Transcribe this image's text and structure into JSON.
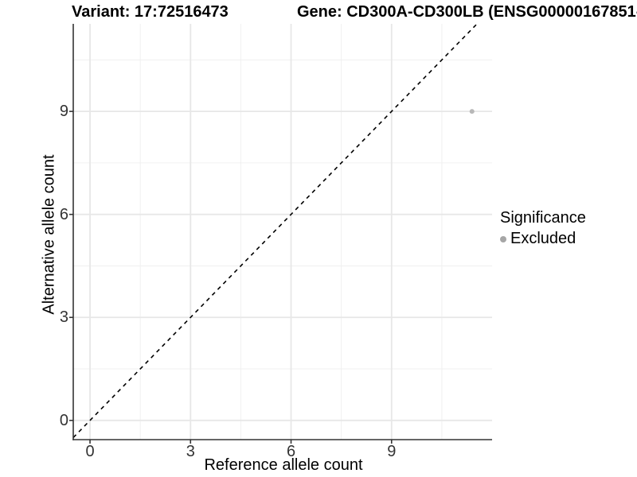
{
  "chart_data": {
    "type": "scatter",
    "titles": {
      "variant": "Variant: 17:72516473",
      "gene": "Gene: CD300A-CD300LB (ENSG00000167851-"
    },
    "xlabel": "Reference allele count",
    "ylabel": "Alternative allele count",
    "x_ticks": [
      0,
      3,
      6,
      9
    ],
    "y_ticks": [
      0,
      3,
      6,
      9
    ],
    "x_minor_ticks": [
      1.5,
      4.5,
      7.5,
      10.5
    ],
    "y_minor_ticks": [
      1.5,
      4.5,
      7.5,
      10.5
    ],
    "xlim": [
      -0.5,
      12.0
    ],
    "ylim": [
      -0.56,
      11.55
    ],
    "grid": {
      "on": true,
      "major_color": "#e7e7e7",
      "minor_color": "#f0f0f0"
    },
    "axis_color": "#333333",
    "tick_label_color": "#333333",
    "reference_line": {
      "kind": "identity y=x",
      "style": "dashed",
      "color": "#000000"
    },
    "series": [
      {
        "name": "Excluded",
        "color": "#b8b8b8",
        "point_radius": 3,
        "points": [
          [
            11.4,
            9
          ]
        ]
      }
    ],
    "legend": {
      "title": "Significance",
      "position": "right",
      "items": [
        {
          "label": "Excluded",
          "color": "#a6a6a6"
        }
      ]
    }
  }
}
